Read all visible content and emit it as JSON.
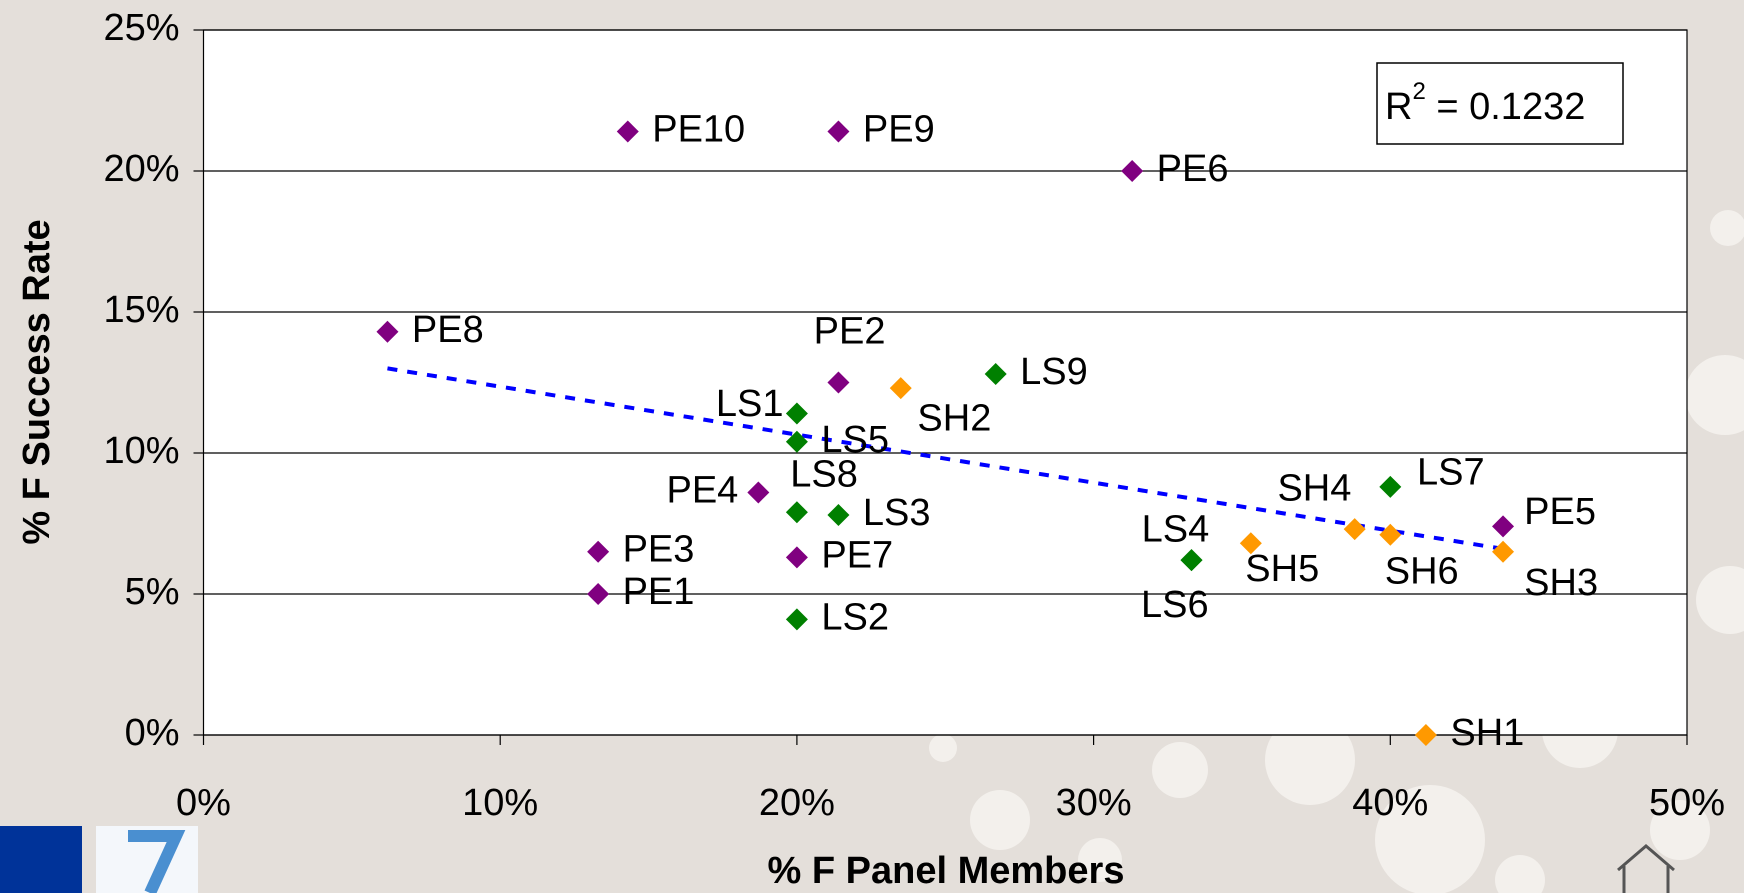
{
  "chart_data": {
    "type": "scatter",
    "xlabel": "% F Panel Members",
    "ylabel": "% F Success Rate",
    "xlim": [
      0,
      50
    ],
    "ylim": [
      0,
      25
    ],
    "xticks": [
      {
        "value": 0,
        "label": "0%"
      },
      {
        "value": 10,
        "label": "10%"
      },
      {
        "value": 20,
        "label": "20%"
      },
      {
        "value": 30,
        "label": "30%"
      },
      {
        "value": 40,
        "label": "40%"
      },
      {
        "value": 50,
        "label": "50%"
      }
    ],
    "yticks": [
      {
        "value": 0,
        "label": "0%"
      },
      {
        "value": 5,
        "label": "5%"
      },
      {
        "value": 10,
        "label": "10%"
      },
      {
        "value": 15,
        "label": "15%"
      },
      {
        "value": 20,
        "label": "20%"
      },
      {
        "value": 25,
        "label": "25%"
      }
    ],
    "grid": true,
    "series": [
      {
        "color": "#800080",
        "labels": [
          "PE10",
          "PE9",
          "PE6",
          "PE8",
          "PE2",
          "PE4",
          "PE3",
          "PE1",
          "PE7",
          "PE5"
        ],
        "x": [
          14.3,
          21.4,
          31.3,
          6.2,
          21.4,
          18.7,
          13.3,
          13.3,
          20.0,
          43.8
        ],
        "values": [
          21.4,
          21.4,
          20.0,
          14.3,
          12.5,
          8.6,
          6.5,
          5.0,
          6.3,
          7.4
        ]
      },
      {
        "color": "#008000",
        "labels": [
          "LS9",
          "LS1",
          "LS5",
          "LS8",
          "LS3",
          "LS2",
          "LS4",
          "LS6",
          "LS7"
        ],
        "x": [
          26.7,
          20.0,
          20.0,
          20.0,
          21.4,
          20.0,
          33.3,
          33.3,
          40.0
        ],
        "values": [
          12.8,
          11.4,
          10.4,
          7.9,
          7.8,
          4.1,
          6.2,
          6.2,
          8.8
        ]
      },
      {
        "color": "#ff9900",
        "labels": [
          "SH2",
          "SH5",
          "SH4",
          "SH6",
          "SH3",
          "SH1"
        ],
        "x": [
          23.5,
          35.3,
          38.8,
          40.0,
          43.8,
          41.2
        ],
        "values": [
          12.3,
          6.8,
          7.3,
          7.1,
          6.5,
          0
        ]
      }
    ],
    "trendline": {
      "color": "#0000ff",
      "x": [
        6.2,
        43.8
      ],
      "values": [
        13.0,
        6.6
      ]
    },
    "annotation": {
      "base": "R",
      "sup": "2",
      "text": " = 0.1232"
    }
  }
}
